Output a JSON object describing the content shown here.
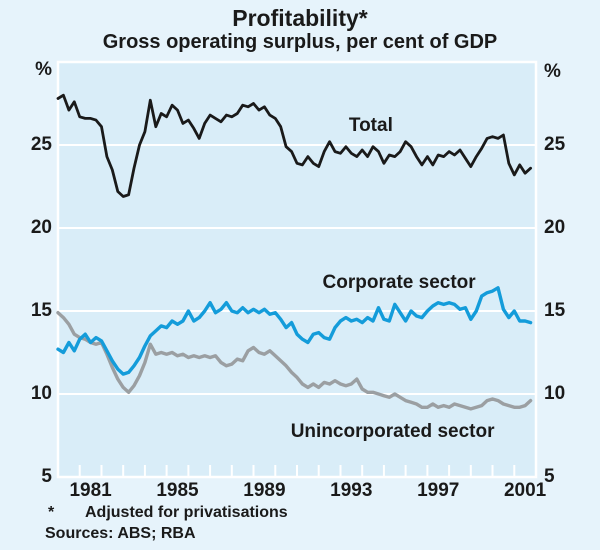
{
  "header": {
    "title": "Profitability*",
    "subtitle": "Gross operating surplus, per cent of GDP"
  },
  "axes": {
    "left_unit": "%",
    "right_unit": "%",
    "y_tick_labels": [
      25,
      20,
      15,
      10,
      5
    ],
    "x_labels": [
      1981,
      1985,
      1989,
      1993,
      1997,
      2001
    ]
  },
  "footnotes": {
    "asterisk": "*",
    "note": "Adjusted for privatisations",
    "sources": "Sources: ABS; RBA"
  },
  "colors": {
    "page_bg": "#e6f3fb",
    "plot_bg": "#d9edf8",
    "grid": "#ffffff",
    "text": "#1a1a1a",
    "total": "#1a1a1a",
    "corporate": "#149cda",
    "unincorporated": "#9b9fa2"
  },
  "chart_data": {
    "type": "line",
    "title": "Profitability*",
    "subtitle": "Gross operating surplus, per cent of GDP",
    "ylabel": "%",
    "ylim": [
      5,
      30
    ],
    "xlim": [
      1980,
      2002
    ],
    "grid": true,
    "y_gridlines": [
      10,
      15,
      20,
      25
    ],
    "x_year_ticks": {
      "from": 1981,
      "to": 2001
    },
    "x_tick_label_years": [
      1981,
      1985,
      1989,
      1993,
      1997,
      2001
    ],
    "annotations": [
      {
        "text": "Total",
        "x": 1994.4,
        "y": 26.15
      },
      {
        "text": "Corporate sector",
        "x": 1995.7,
        "y": 16.7
      },
      {
        "text": "Unincorporated sector",
        "x": 1995.4,
        "y": 7.7
      }
    ],
    "series": [
      {
        "name": "Total",
        "color_key": "total",
        "x_start": 1980.0,
        "x_step": 0.25,
        "values": [
          27.8,
          28.0,
          27.1,
          27.6,
          26.7,
          26.6,
          26.6,
          26.5,
          26.1,
          24.3,
          23.5,
          22.2,
          21.9,
          22.0,
          23.6,
          25.0,
          25.8,
          27.7,
          26.1,
          26.9,
          26.7,
          27.4,
          27.1,
          26.3,
          26.5,
          26.0,
          25.4,
          26.3,
          26.8,
          26.6,
          26.4,
          26.8,
          26.7,
          26.9,
          27.4,
          27.3,
          27.5,
          27.1,
          27.3,
          26.8,
          26.6,
          26.1,
          24.9,
          24.6,
          23.9,
          23.8,
          24.3,
          23.9,
          23.7,
          24.6,
          25.2,
          24.6,
          24.5,
          24.9,
          24.5,
          24.3,
          24.7,
          24.3,
          24.9,
          24.6,
          23.9,
          24.4,
          24.3,
          24.6,
          25.2,
          24.9,
          24.3,
          23.8,
          24.3,
          23.8,
          24.4,
          24.3,
          24.6,
          24.4,
          24.7,
          24.2,
          23.7,
          24.3,
          24.8,
          25.4,
          25.5,
          25.4,
          25.6,
          23.9,
          23.2,
          23.8,
          23.3,
          23.6
        ]
      },
      {
        "name": "Corporate sector",
        "color_key": "corporate",
        "x_start": 1980.0,
        "x_step": 0.25,
        "values": [
          12.7,
          12.5,
          13.1,
          12.6,
          13.3,
          13.6,
          13.1,
          13.4,
          13.2,
          12.6,
          12.0,
          11.5,
          11.2,
          11.3,
          11.7,
          12.2,
          12.9,
          13.5,
          13.8,
          14.1,
          14.0,
          14.4,
          14.2,
          14.4,
          15.0,
          14.4,
          14.6,
          15.0,
          15.5,
          14.9,
          15.1,
          15.5,
          15.0,
          14.9,
          15.2,
          14.9,
          15.1,
          14.9,
          15.1,
          14.8,
          14.9,
          14.5,
          14.0,
          14.3,
          13.6,
          13.3,
          13.1,
          13.6,
          13.7,
          13.4,
          13.3,
          14.0,
          14.4,
          14.6,
          14.4,
          14.5,
          14.3,
          14.6,
          14.4,
          15.2,
          14.5,
          14.4,
          15.4,
          14.9,
          14.4,
          15.0,
          14.7,
          14.6,
          15.0,
          15.3,
          15.5,
          15.4,
          15.5,
          15.4,
          15.1,
          15.2,
          14.5,
          15.0,
          15.9,
          16.1,
          16.2,
          16.4,
          15.1,
          14.6,
          15.0,
          14.4,
          14.4,
          14.3
        ]
      },
      {
        "name": "Unincorporated sector",
        "color_key": "unincorporated",
        "x_start": 1980.0,
        "x_step": 0.25,
        "values": [
          14.9,
          14.6,
          14.2,
          13.6,
          13.4,
          13.3,
          13.1,
          13.0,
          13.1,
          12.4,
          11.6,
          10.9,
          10.4,
          10.1,
          10.5,
          11.1,
          11.9,
          13.0,
          12.4,
          12.5,
          12.4,
          12.5,
          12.3,
          12.4,
          12.2,
          12.3,
          12.2,
          12.3,
          12.2,
          12.3,
          11.9,
          11.7,
          11.8,
          12.1,
          12.0,
          12.6,
          12.8,
          12.5,
          12.4,
          12.6,
          12.3,
          12.0,
          11.7,
          11.3,
          11.0,
          10.6,
          10.4,
          10.6,
          10.4,
          10.7,
          10.6,
          10.8,
          10.6,
          10.5,
          10.6,
          10.9,
          10.3,
          10.1,
          10.1,
          10.0,
          9.9,
          9.8,
          10.0,
          9.8,
          9.6,
          9.5,
          9.4,
          9.2,
          9.2,
          9.4,
          9.2,
          9.3,
          9.2,
          9.4,
          9.3,
          9.2,
          9.1,
          9.2,
          9.3,
          9.6,
          9.7,
          9.6,
          9.4,
          9.3,
          9.2,
          9.2,
          9.3,
          9.6
        ]
      }
    ]
  }
}
